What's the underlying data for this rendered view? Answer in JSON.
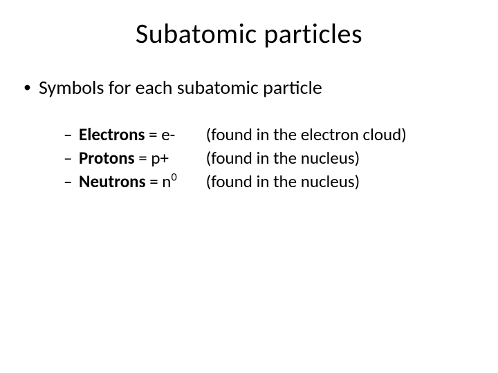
{
  "slide": {
    "title": "Subatomic particles",
    "background_color": "#ffffff",
    "text_color": "#000000",
    "title_fontsize": 40,
    "body_fontsize": 28,
    "sub_fontsize": 25,
    "font_family": "Calibri"
  },
  "bullets": {
    "level1": {
      "text": "Symbols for each subatomic particle"
    },
    "level2": [
      {
        "name": "Electrons",
        "symbol_prefix": " = e-",
        "location": "(found in the electron cloud)"
      },
      {
        "name": "Protons",
        "symbol_prefix": " = p+",
        "location": " (found in the nucleus)"
      },
      {
        "name": "Neutrons",
        "symbol_prefix": " = n",
        "symbol_super": "0",
        "location": "(found in the nucleus)"
      }
    ]
  }
}
